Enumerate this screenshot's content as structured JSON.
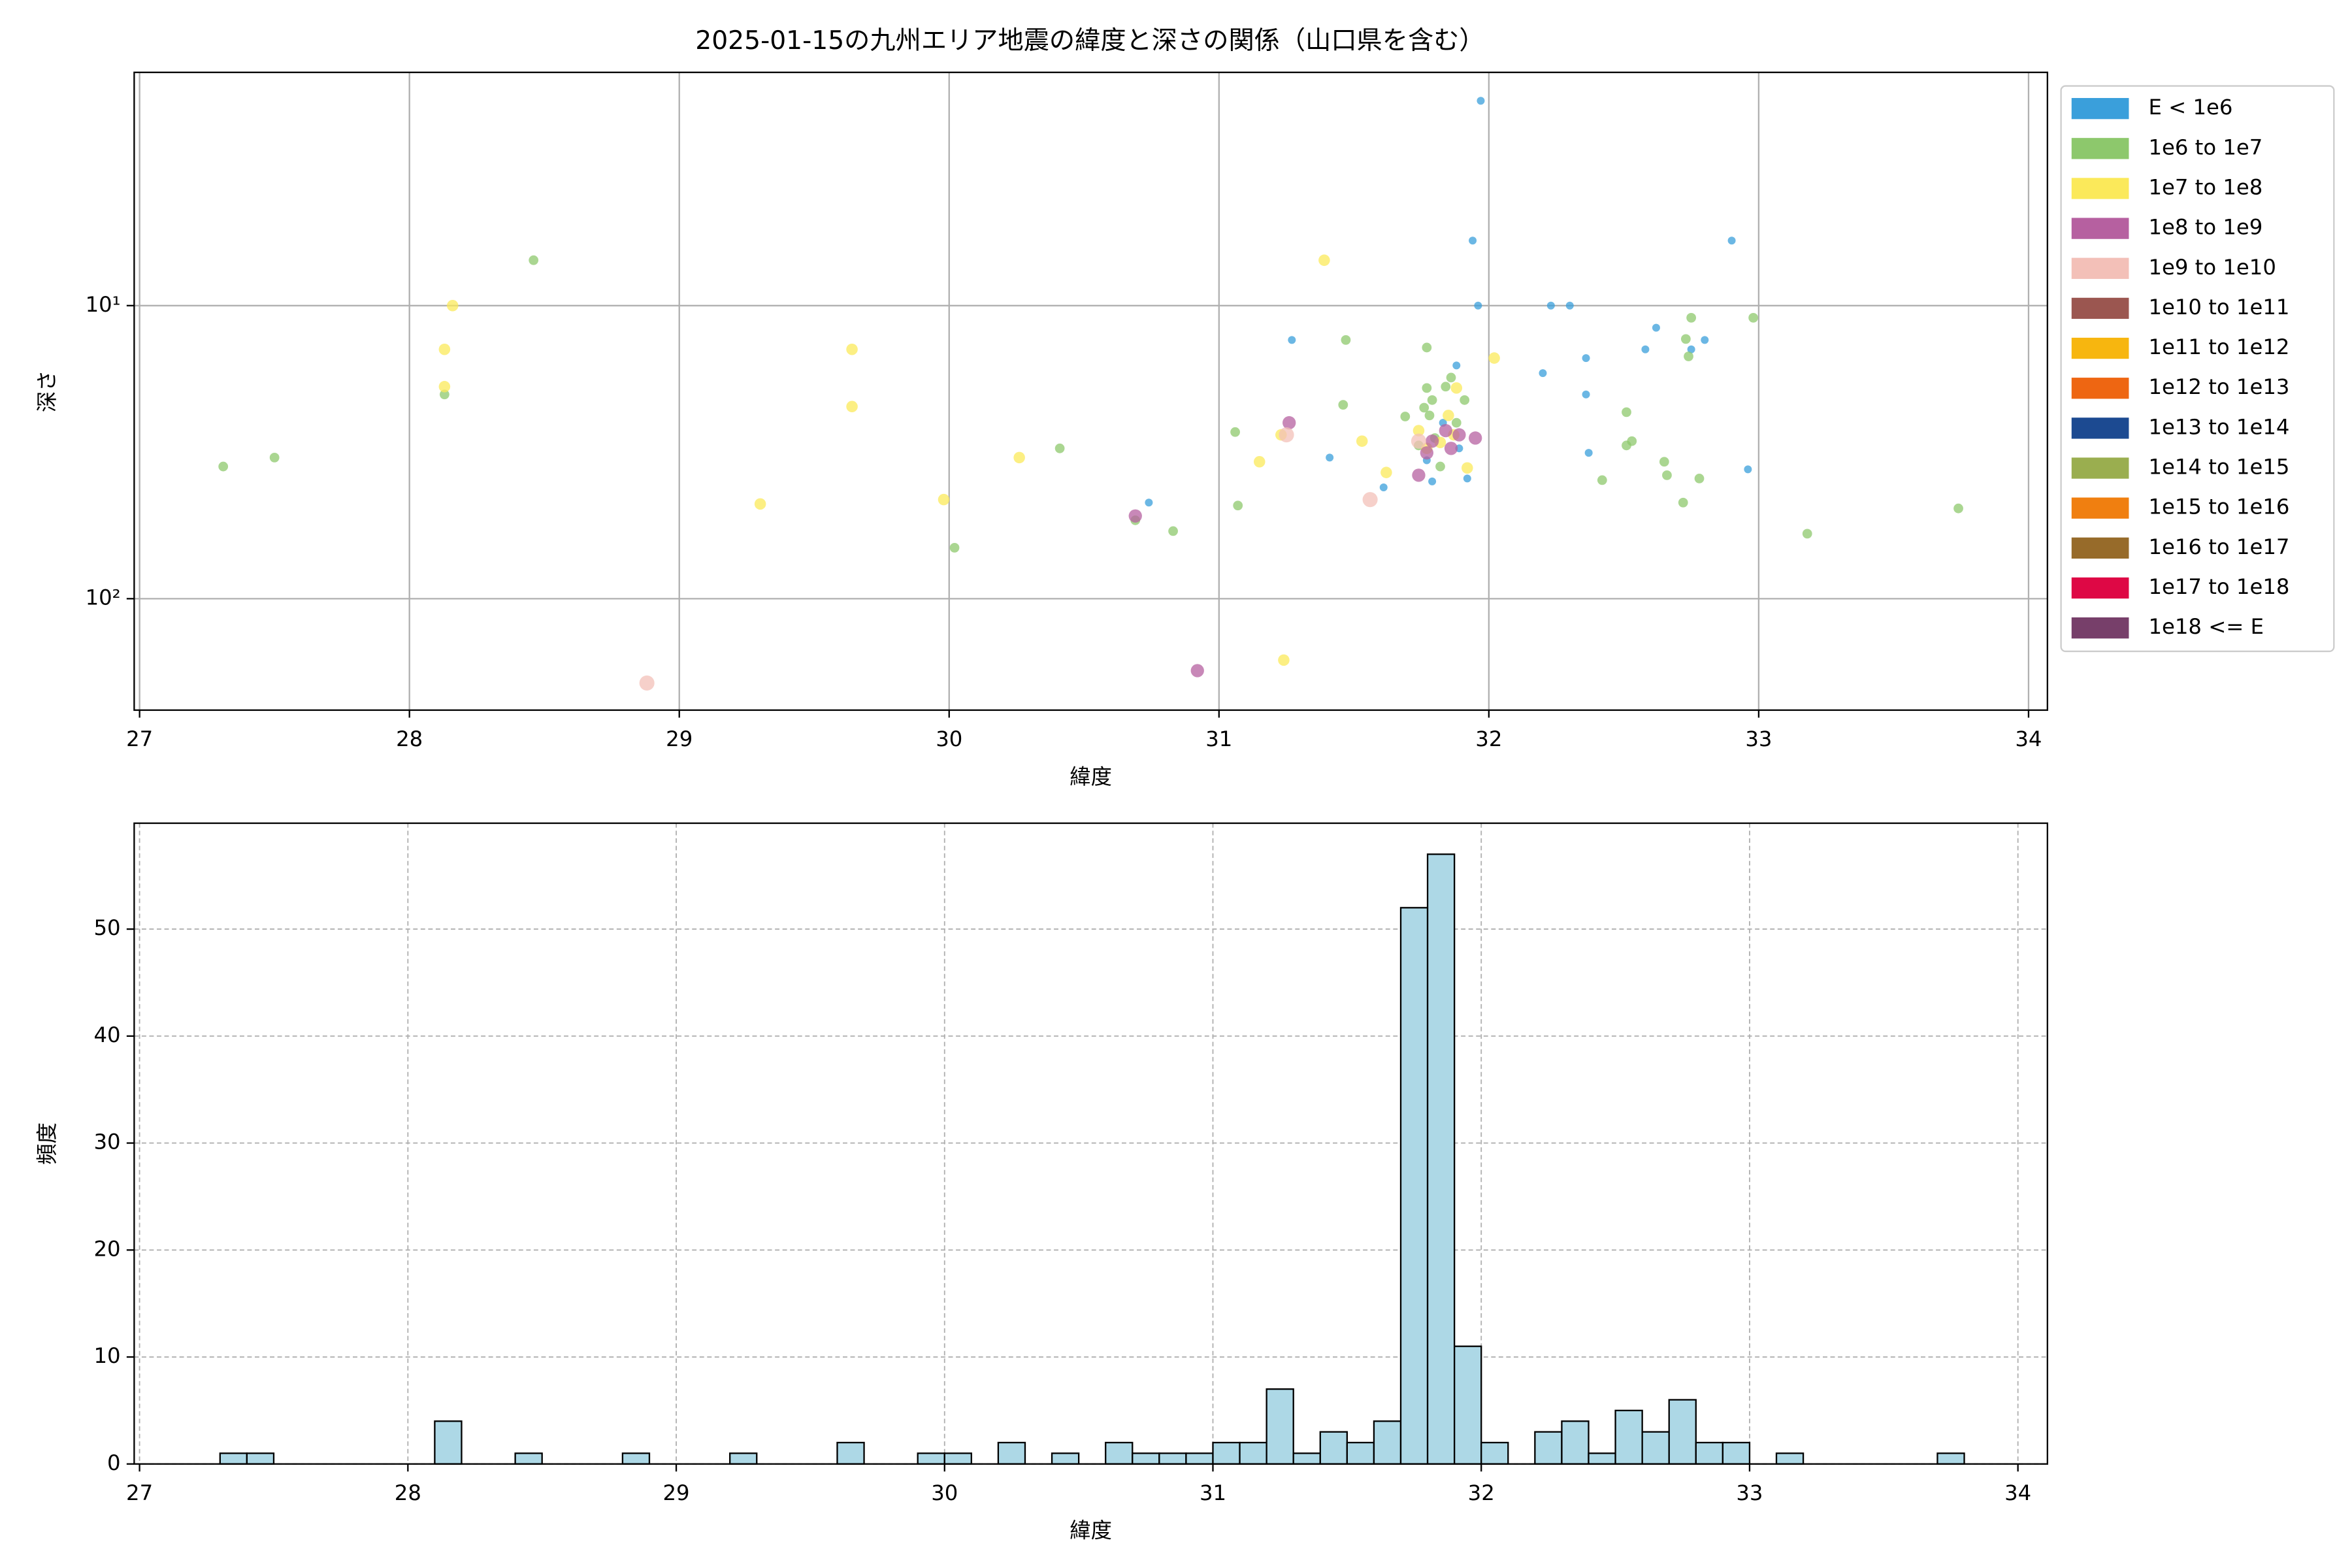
{
  "chart_data": [
    {
      "type": "scatter",
      "title": "2025-01-15の九州エリア地震の緯度と深さの関係（山口県を含む）",
      "x_label": "緯度",
      "y_label": "深さ",
      "xlim": [
        26.98,
        34.07
      ],
      "xticks": [
        27,
        28,
        29,
        30,
        31,
        32,
        33,
        34
      ],
      "ylim": [
        240,
        1.6
      ],
      "log_y": true,
      "yticks": [
        {
          "value": 10,
          "label": "10¹"
        },
        {
          "value": 100,
          "label": "10²"
        }
      ],
      "grid": true,
      "legend": "outside upper right",
      "series": [
        {
          "name": "E < 1e6",
          "color": "#3a9fdb",
          "x": [
            31.97,
            31.94,
            31.96,
            32.9,
            32.23,
            32.3,
            31.27,
            32.62,
            32.8,
            32.58,
            32.75,
            31.88,
            32.2,
            32.36,
            32.36,
            32.37,
            31.41,
            30.74,
            31.61,
            32.96,
            31.79,
            31.92,
            31.89,
            31.83,
            31.77
          ],
          "values": [
            2.0,
            6.0,
            10,
            6.0,
            10,
            10,
            13.1,
            11.9,
            13.1,
            14.1,
            14.1,
            16.0,
            17,
            15.1,
            20.1,
            31.8,
            33,
            47,
            41.7,
            36.2,
            39.8,
            38.9,
            30.7,
            25.1,
            33.7
          ]
        },
        {
          "name": "1e6 to 1e7",
          "color": "#8dc86c",
          "x": [
            27.31,
            27.5,
            28.13,
            28.46,
            30.02,
            30.41,
            30.69,
            30.83,
            31.06,
            31.07,
            31.47,
            31.46,
            31.69,
            31.77,
            31.77,
            31.76,
            31.79,
            31.84,
            31.86,
            31.8,
            31.74,
            31.78,
            31.91,
            32.42,
            32.51,
            32.51,
            32.53,
            32.65,
            32.66,
            32.72,
            32.73,
            32.74,
            32.75,
            32.78,
            32.98,
            33.18,
            33.74,
            31.82,
            31.88
          ],
          "values": [
            35.4,
            33,
            20.1,
            7.0,
            67,
            30.7,
            54,
            58.8,
            27,
            48.1,
            13.1,
            21.8,
            23.9,
            13.9,
            19.1,
            22.3,
            21.0,
            18.9,
            17.6,
            28.3,
            30,
            23.7,
            21,
            39.4,
            30,
            23.1,
            29,
            34.1,
            37.9,
            47,
            13,
            14.9,
            11,
            38.9,
            11,
            60,
            49.2,
            35.4,
            25.1
          ]
        },
        {
          "name": "1e7 to 1e8",
          "color": "#fbe95a",
          "x": [
            28.16,
            28.13,
            28.13,
            29.64,
            29.64,
            29.3,
            29.98,
            30.26,
            31.15,
            31.24,
            31.39,
            31.53,
            31.62,
            31.88,
            32.02,
            31.74,
            31.77,
            31.82,
            31.85,
            31.92,
            31.87,
            31.23
          ],
          "values": [
            10,
            14.1,
            18.9,
            14.1,
            22.1,
            47.5,
            45.9,
            33,
            34.1,
            162,
            7.0,
            29,
            37.1,
            19.1,
            15.1,
            26.7,
            30.7,
            29.3,
            23.7,
            35.8,
            27.6,
            27.6
          ]
        },
        {
          "name": "1e8 to 1e9",
          "color": "#b660a0",
          "x": [
            30.69,
            30.92,
            31.26,
            31.74,
            31.77,
            31.86,
            31.89,
            31.95,
            31.84,
            31.79
          ],
          "values": [
            52.2,
            176,
            25.1,
            37.9,
            31.8,
            30.7,
            27.6,
            28.3,
            26.7,
            29
          ]
        },
        {
          "name": "1e9 to 1e10",
          "color": "#f3c0b8",
          "x": [
            28.88,
            31.25,
            31.56,
            31.74
          ],
          "values": [
            194,
            27.6,
            45.9,
            29
          ]
        },
        {
          "name": "1e10 to 1e11",
          "color": "#9b5650",
          "x": [],
          "values": []
        },
        {
          "name": "1e11 to 1e12",
          "color": "#f7b60f",
          "x": [],
          "values": []
        },
        {
          "name": "1e12 to 1e13",
          "color": "#ee6612",
          "x": [],
          "values": []
        },
        {
          "name": "1e13 to 1e14",
          "color": "#1c4a91",
          "x": [],
          "values": []
        },
        {
          "name": "1e14 to 1e15",
          "color": "#9aae4f",
          "x": [],
          "values": []
        },
        {
          "name": "1e15 to 1e16",
          "color": "#f07f10",
          "x": [],
          "values": []
        },
        {
          "name": "1e16 to 1e17",
          "color": "#976b2a",
          "x": [],
          "values": []
        },
        {
          "name": "1e17 to 1e18",
          "color": "#de0845",
          "x": [],
          "values": []
        },
        {
          "name": "1e18 <= E",
          "color": "#773f6a",
          "x": [],
          "values": []
        }
      ]
    },
    {
      "type": "histogram",
      "x_label": "緯度",
      "y_label": "頻度",
      "xlim": [
        26.98,
        34.11
      ],
      "xticks": [
        27,
        28,
        29,
        30,
        31,
        32,
        33,
        34
      ],
      "ylim": [
        0,
        59.9
      ],
      "yticks": [
        0,
        10,
        20,
        30,
        40,
        50
      ],
      "grid": true,
      "grid_style": "dashed",
      "color": "#add8e6",
      "edgecolor": "#000000",
      "bins": [
        27.3,
        27.4,
        27.5,
        27.6,
        27.7,
        27.8,
        27.9,
        28.0,
        28.1,
        28.2,
        28.3,
        28.4,
        28.5,
        28.6,
        28.7,
        28.8,
        28.9,
        29.0,
        29.1,
        29.2,
        29.3,
        29.4,
        29.5,
        29.6,
        29.7,
        29.8,
        29.9,
        30.0,
        30.1,
        30.2,
        30.3,
        30.4,
        30.5,
        30.6,
        30.7,
        30.8,
        30.9,
        31.0,
        31.1,
        31.2,
        31.3,
        31.4,
        31.5,
        31.6,
        31.7,
        31.8,
        31.9,
        32.0,
        32.1,
        32.2,
        32.3,
        32.4,
        32.5,
        32.6,
        32.7,
        32.8,
        32.9,
        33.0,
        33.1,
        33.2,
        33.3,
        33.4,
        33.5,
        33.6,
        33.7,
        33.8
      ],
      "values": [
        1,
        1,
        0,
        0,
        0,
        0,
        0,
        0,
        4,
        0,
        0,
        1,
        0,
        0,
        0,
        1,
        0,
        0,
        0,
        1,
        0,
        0,
        0,
        2,
        0,
        0,
        1,
        1,
        0,
        2,
        0,
        1,
        0,
        2,
        1,
        1,
        1,
        2,
        2,
        7,
        1,
        3,
        2,
        4,
        52,
        57,
        11,
        2,
        0,
        3,
        4,
        1,
        5,
        3,
        6,
        2,
        2,
        0,
        1,
        0,
        0,
        0,
        0,
        0,
        1
      ]
    }
  ]
}
